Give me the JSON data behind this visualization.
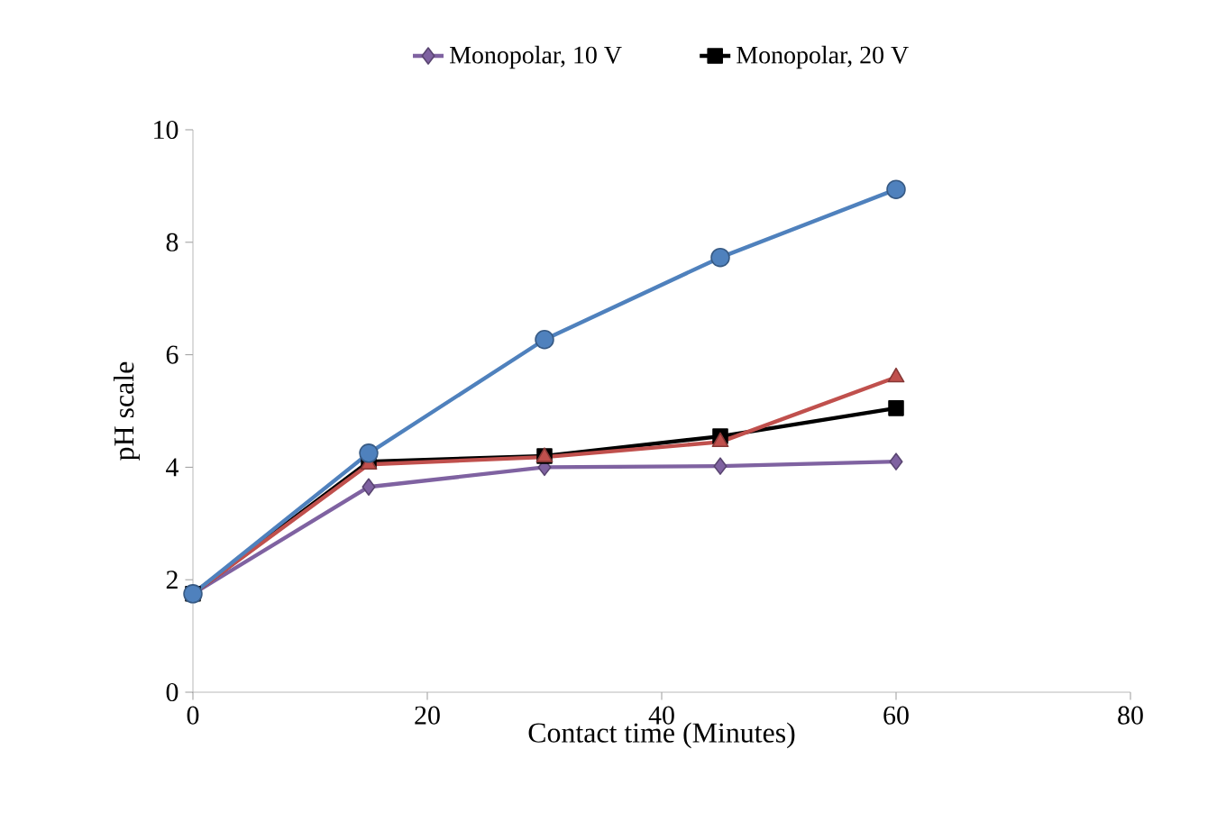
{
  "chart_data": {
    "type": "line",
    "xlabel": "Contact time (Minutes)",
    "ylabel": "pH scale",
    "x": [
      0,
      15,
      30,
      45,
      60
    ],
    "xlim": [
      0,
      80
    ],
    "xticks": [
      0,
      20,
      40,
      60,
      80
    ],
    "ylim": [
      0,
      10
    ],
    "yticks": [
      0,
      2,
      4,
      6,
      8,
      10
    ],
    "grid": false,
    "legend": "top",
    "series": [
      {
        "name": "Monopolar, 10 V",
        "color": "#7f62a1",
        "marker": "diamond",
        "values": [
          1.75,
          3.65,
          4.0,
          4.02,
          4.1
        ]
      },
      {
        "name": "Monopolar, 20 V",
        "color": "#000000",
        "marker": "square",
        "values": [
          1.75,
          4.1,
          4.2,
          4.55,
          5.05
        ]
      },
      {
        "color": "#c0504d",
        "marker": "triangle",
        "values": [
          1.75,
          4.05,
          4.18,
          4.45,
          5.6
        ]
      },
      {
        "color": "#4f81bd",
        "marker": "circle",
        "values": [
          1.75,
          4.25,
          6.27,
          7.73,
          8.94
        ]
      }
    ]
  }
}
